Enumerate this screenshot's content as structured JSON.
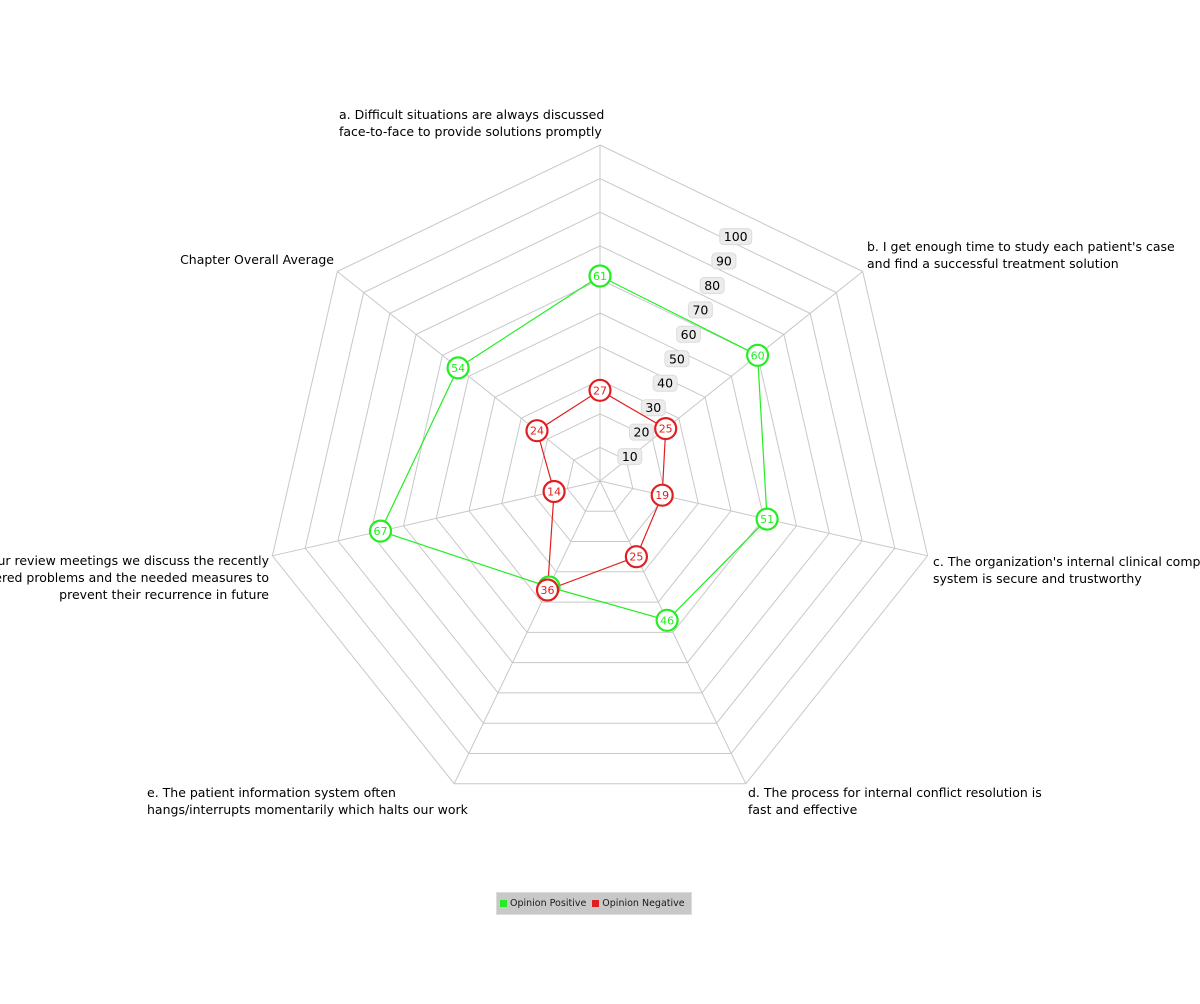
{
  "chart_data": {
    "type": "radar",
    "categories": [
      [
        "a. Difficult situations are always discussed",
        "face-to-face to provide solutions promptly"
      ],
      [
        "b. I get enough time to study each patient's case",
        "and find a successful treatment solution"
      ],
      [
        "c. The organization's internal clinical complaints",
        "system is secure and trustworthy"
      ],
      [
        "d. The process for internal conflict resolution is",
        "fast and effective"
      ],
      [
        "e. The patient information system often",
        "hangs/interrupts momentarily which halts our work"
      ],
      [
        "f. In our review meetings we discuss the recently",
        "encountered problems and the needed measures to",
        "prevent their recurrence in future"
      ],
      [
        "Chapter Overall Average"
      ]
    ],
    "r_ticks": [
      "10",
      "20",
      "30",
      "40",
      "50",
      "60",
      "70",
      "80",
      "90",
      "100"
    ],
    "r_range": [
      0,
      100
    ],
    "grid": true,
    "legend_position": "bottom",
    "series": [
      {
        "name": "Opinion Positive",
        "color": "#22ee22",
        "values": [
          61,
          60,
          51,
          46,
          35,
          67,
          54
        ]
      },
      {
        "name": "Opinion Negative",
        "color": "#e02020",
        "values": [
          27,
          25,
          19,
          25,
          36,
          14,
          24
        ]
      }
    ]
  }
}
